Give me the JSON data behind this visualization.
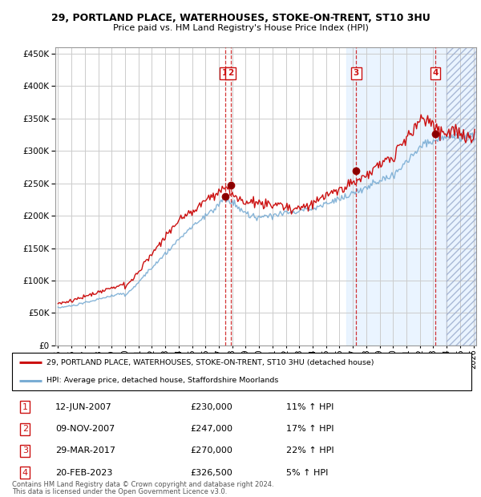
{
  "title": "29, PORTLAND PLACE, WATERHOUSES, STOKE-ON-TRENT, ST10 3HU",
  "subtitle": "Price paid vs. HM Land Registry's House Price Index (HPI)",
  "legend_line1": "29, PORTLAND PLACE, WATERHOUSES, STOKE-ON-TRENT, ST10 3HU (detached house)",
  "legend_line2": "HPI: Average price, detached house, Staffordshire Moorlands",
  "footer1": "Contains HM Land Registry data © Crown copyright and database right 2024.",
  "footer2": "This data is licensed under the Open Government Licence v3.0.",
  "transactions": [
    {
      "num": 1,
      "date": "12-JUN-2007",
      "price": 230000,
      "pct": "11%",
      "dir": "↑",
      "x_year": 2007.45
    },
    {
      "num": 2,
      "date": "09-NOV-2007",
      "price": 247000,
      "pct": "17%",
      "dir": "↑",
      "x_year": 2007.87
    },
    {
      "num": 3,
      "date": "29-MAR-2017",
      "price": 270000,
      "pct": "22%",
      "dir": "↑",
      "x_year": 2017.25
    },
    {
      "num": 4,
      "date": "20-FEB-2023",
      "price": 326500,
      "pct": "5%",
      "dir": "↑",
      "x_year": 2023.14
    }
  ],
  "hpi_color": "#7aadd4",
  "price_color": "#cc1111",
  "background_color": "#ffffff",
  "grid_color": "#cccccc",
  "blue_shade_start": 2016.5,
  "future_hatch_start": 2024.0,
  "ylim": [
    0,
    460000
  ],
  "xlim_start": 1994.8,
  "xlim_end": 2026.2,
  "yticks": [
    0,
    50000,
    100000,
    150000,
    200000,
    250000,
    300000,
    350000,
    400000,
    450000
  ],
  "xtick_years": [
    1995,
    1996,
    1997,
    1998,
    1999,
    2000,
    2001,
    2002,
    2003,
    2004,
    2005,
    2006,
    2007,
    2008,
    2009,
    2010,
    2011,
    2012,
    2013,
    2014,
    2015,
    2016,
    2017,
    2018,
    2019,
    2020,
    2021,
    2022,
    2023,
    2024,
    2025,
    2026
  ]
}
